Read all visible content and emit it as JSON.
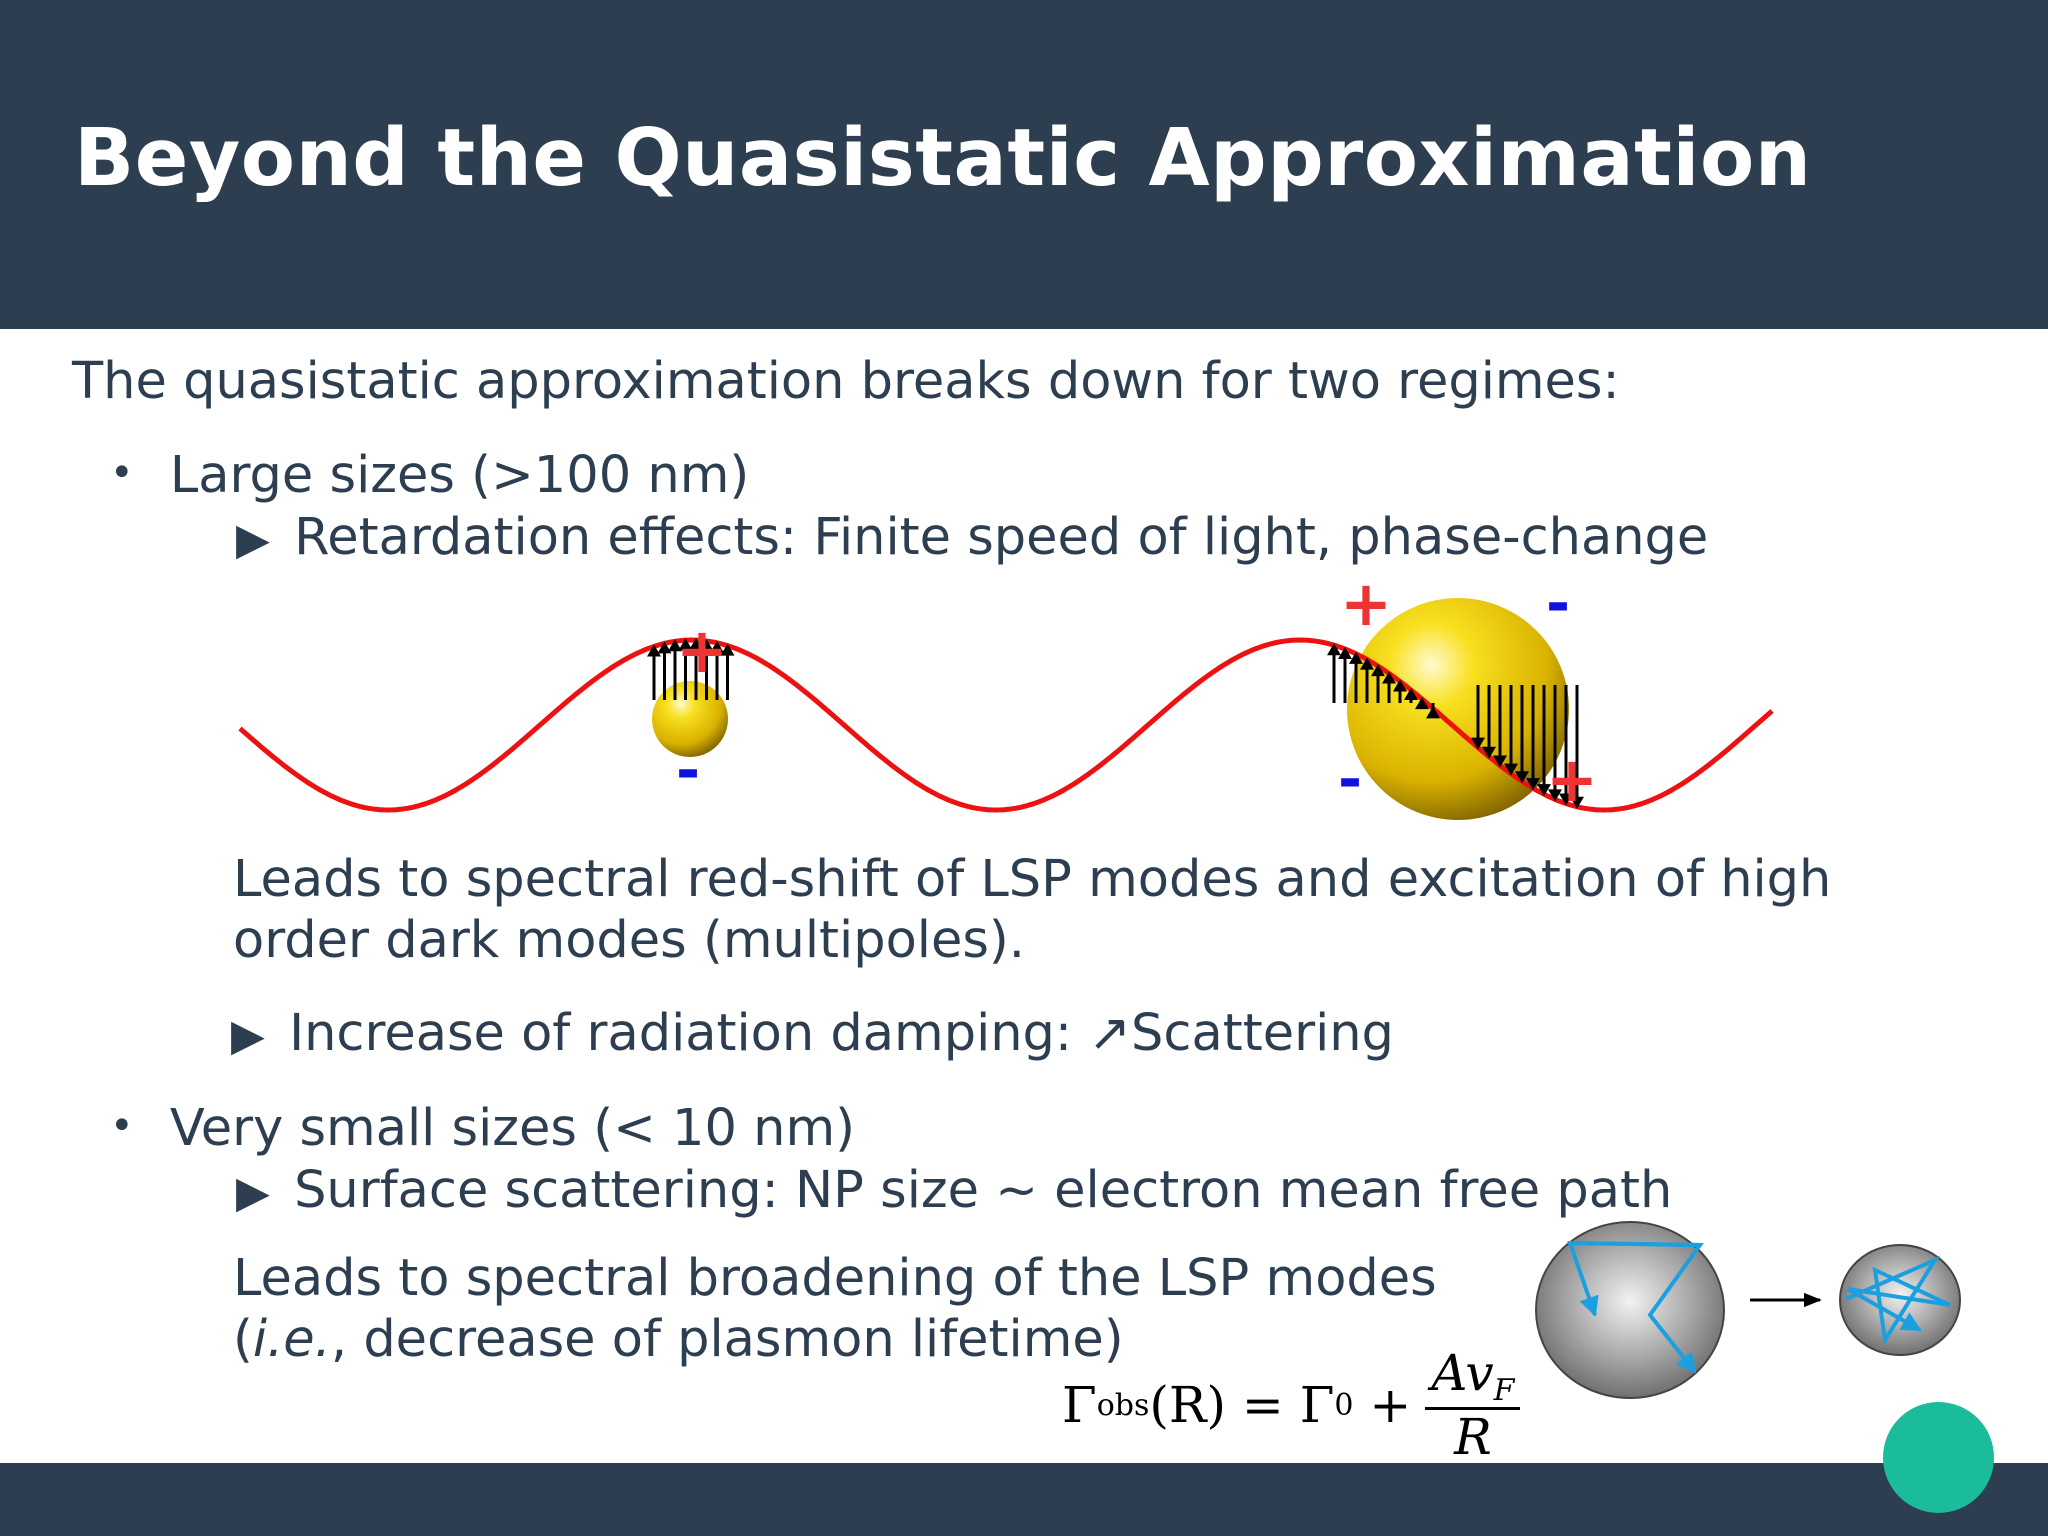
{
  "slide": {
    "title": "Beyond the Quasistatic Approximation",
    "intro": "The quasistatic approximation breaks down for two regimes:",
    "bullet_symbol": "•",
    "arrow_symbol": "▶",
    "large_sizes": {
      "label": "Large sizes (>100 nm)",
      "effect": "Retardation effects: Finite speed of light, phase-change",
      "consequence_line1": "Leads to spectral red-shift of LSP modes and excitation of high",
      "consequence_line2": "order dark modes (multipoles).",
      "damping": "Increase of radiation damping: ↗Scattering"
    },
    "small_sizes": {
      "label": "Very small sizes (< 10 nm)",
      "effect": "Surface scattering: NP size ~ electron mean free path",
      "consequence_line1": "Leads to spectral broadening of the LSP modes",
      "consequence_line2_prefix": "(",
      "consequence_line2_italic": "i.e.",
      "consequence_line2_suffix": ", decrease of plasmon lifetime)"
    },
    "formula": {
      "lhs_symbol": "Γ",
      "lhs_sub": "obs",
      "lhs_arg": "(R) = Γ",
      "gamma0_sub": "0",
      "plus": " +",
      "numerator": "Av",
      "numerator_sub": "F",
      "denominator": "R"
    },
    "diagram_charges": {
      "plus": "+",
      "minus": "-"
    }
  },
  "colors": {
    "header_bg": "#2c3e50",
    "text": "#2c3e50",
    "wave": "#ee1111",
    "plus_charge": "#ee3333",
    "minus_charge": "#1111dd",
    "gold": "#e8c400",
    "scatter_path": "#1aa0e0",
    "accent_dot": "#1abc9c"
  }
}
